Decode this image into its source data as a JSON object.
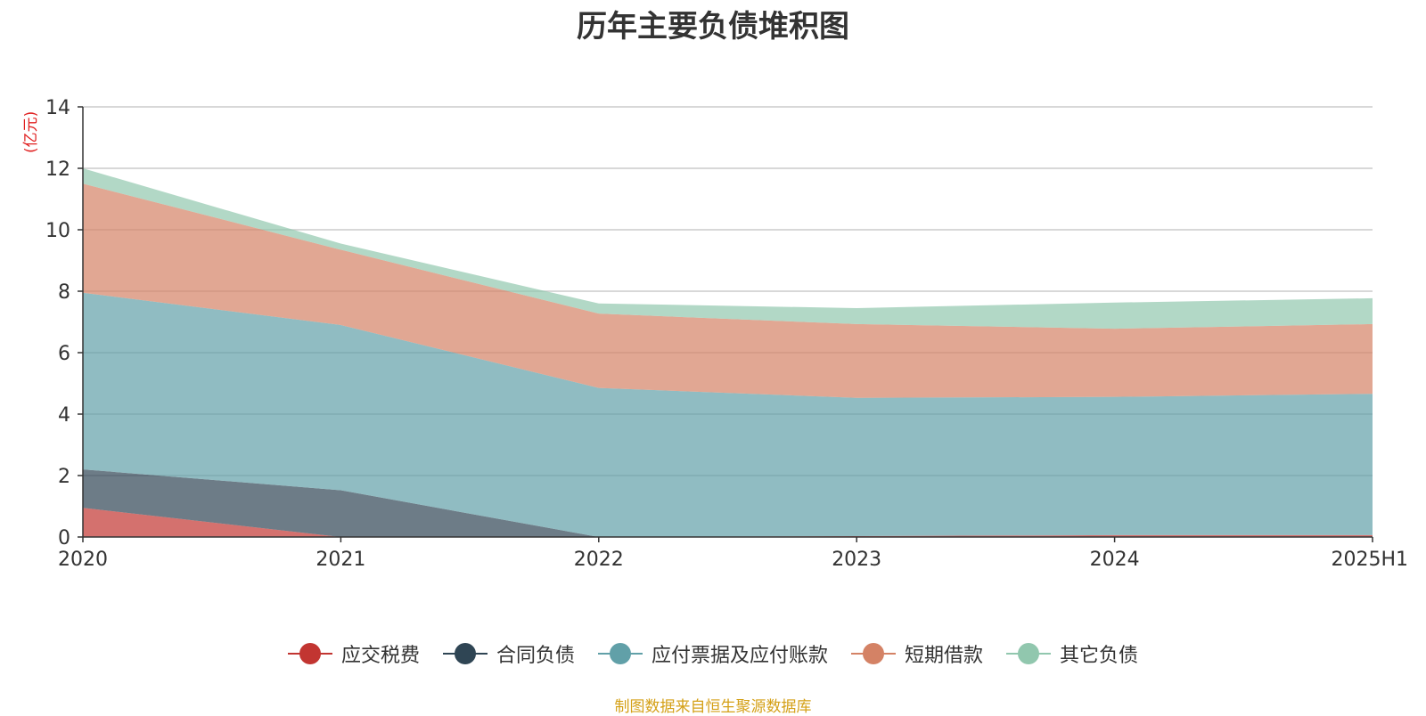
{
  "chart_data": {
    "type": "area",
    "stacked": true,
    "title": "历年主要负债堆积图",
    "ylabel": "(亿元)",
    "xlabel": "",
    "categories": [
      "2020",
      "2021",
      "2022",
      "2023",
      "2024",
      "2025H1"
    ],
    "ylim": [
      0,
      14
    ],
    "yticks": [
      0,
      2,
      4,
      6,
      8,
      10,
      12,
      14
    ],
    "grid": true,
    "legend_position": "bottom",
    "series": [
      {
        "name": "应交税费",
        "color": "#c23531",
        "values": [
          0.95,
          0.0,
          0.0,
          0.03,
          0.06,
          0.06
        ]
      },
      {
        "name": "合同负债",
        "color": "#2f4554",
        "values": [
          1.25,
          1.52,
          0.0,
          0.0,
          0.0,
          0.0
        ]
      },
      {
        "name": "应付票据及应付账款",
        "color": "#61a0a8",
        "values": [
          5.75,
          5.38,
          4.85,
          4.5,
          4.5,
          4.6
        ]
      },
      {
        "name": "短期借款",
        "color": "#d48265",
        "values": [
          3.55,
          2.45,
          2.42,
          2.4,
          2.22,
          2.27
        ]
      },
      {
        "name": "其它负债",
        "color": "#91c7ae",
        "values": [
          0.5,
          0.2,
          0.33,
          0.52,
          0.85,
          0.84
        ]
      }
    ]
  },
  "source_note": "制图数据来自恒生聚源数据库"
}
